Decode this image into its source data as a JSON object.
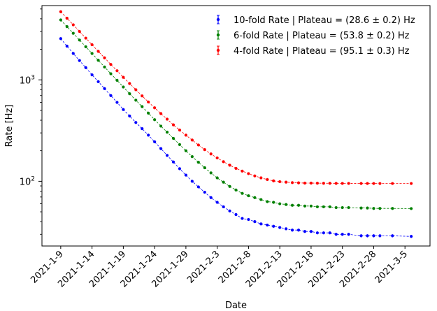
{
  "chart_data": {
    "type": "scatter",
    "title": "",
    "xlabel": "Date",
    "ylabel": "Rate [Hz]",
    "y_scale": "log",
    "ylim": [
      23,
      5400
    ],
    "xlim": [
      "2021-01-06",
      "2021-03-09"
    ],
    "grid": false,
    "legend_position": "top-right",
    "x_ticks": [
      "2021-1-9",
      "2021-1-14",
      "2021-1-19",
      "2021-1-24",
      "2021-1-29",
      "2021-2-3",
      "2021-2-8",
      "2021-2-13",
      "2021-2-18",
      "2021-2-23",
      "2021-2-28",
      "2021-3-5"
    ],
    "y_ticks": [
      {
        "value": 100,
        "label": "10",
        "exp": "2"
      },
      {
        "value": 1000,
        "label": "10",
        "exp": "3"
      }
    ],
    "series": [
      {
        "name": "10-fold Rate | Plateau = (28.6 ± 0.2) Hz",
        "color": "#0000ff",
        "x": [
          "2021-01-09",
          "2021-01-10",
          "2021-01-11",
          "2021-01-12",
          "2021-01-13",
          "2021-01-14",
          "2021-01-15",
          "2021-01-16",
          "2021-01-17",
          "2021-01-18",
          "2021-01-19",
          "2021-01-20",
          "2021-01-21",
          "2021-01-22",
          "2021-01-23",
          "2021-01-24",
          "2021-01-25",
          "2021-01-26",
          "2021-01-27",
          "2021-01-28",
          "2021-01-29",
          "2021-01-30",
          "2021-01-31",
          "2021-02-01",
          "2021-02-02",
          "2021-02-03",
          "2021-02-04",
          "2021-02-05",
          "2021-02-06",
          "2021-02-07",
          "2021-02-08",
          "2021-02-09",
          "2021-02-10",
          "2021-02-11",
          "2021-02-12",
          "2021-02-13",
          "2021-02-14",
          "2021-02-15",
          "2021-02-16",
          "2021-02-17",
          "2021-02-18",
          "2021-02-19",
          "2021-02-20",
          "2021-02-21",
          "2021-02-22",
          "2021-02-23",
          "2021-02-24",
          "2021-02-26",
          "2021-02-27",
          "2021-02-28",
          "2021-03-01",
          "2021-03-03",
          "2021-03-06"
        ],
        "values": [
          2550,
          2150,
          1820,
          1550,
          1320,
          1120,
          960,
          820,
          700,
          600,
          510,
          440,
          380,
          330,
          285,
          245,
          210,
          180,
          155,
          133,
          115,
          100,
          88,
          78,
          69,
          62,
          56,
          51,
          47,
          43,
          42,
          40,
          38,
          37,
          36,
          35,
          34,
          33,
          33,
          32,
          32,
          31,
          31,
          31,
          30,
          30,
          30,
          29,
          29,
          29,
          29,
          29,
          28.6
        ],
        "errors": [
          15,
          13,
          11,
          10,
          9,
          8,
          7,
          6,
          5,
          5,
          4,
          4,
          3,
          3,
          3,
          2,
          2,
          2,
          2,
          2,
          1.5,
          1.5,
          1.2,
          1,
          1,
          1,
          1,
          1,
          1,
          1,
          1,
          1,
          1,
          1,
          1,
          1,
          1,
          1,
          1,
          1,
          1,
          1,
          1,
          1,
          1,
          1,
          1,
          1,
          1,
          1,
          1,
          1,
          1
        ]
      },
      {
        "name": "6-fold Rate | Plateau = (53.8 ± 0.2) Hz",
        "color": "#008000",
        "x": [
          "2021-01-09",
          "2021-01-10",
          "2021-01-11",
          "2021-01-12",
          "2021-01-13",
          "2021-01-14",
          "2021-01-15",
          "2021-01-16",
          "2021-01-17",
          "2021-01-18",
          "2021-01-19",
          "2021-01-20",
          "2021-01-21",
          "2021-01-22",
          "2021-01-23",
          "2021-01-24",
          "2021-01-25",
          "2021-01-26",
          "2021-01-27",
          "2021-01-28",
          "2021-01-29",
          "2021-01-30",
          "2021-01-31",
          "2021-02-01",
          "2021-02-02",
          "2021-02-03",
          "2021-02-04",
          "2021-02-05",
          "2021-02-06",
          "2021-02-07",
          "2021-02-08",
          "2021-02-09",
          "2021-02-10",
          "2021-02-11",
          "2021-02-12",
          "2021-02-13",
          "2021-02-14",
          "2021-02-15",
          "2021-02-16",
          "2021-02-17",
          "2021-02-18",
          "2021-02-19",
          "2021-02-20",
          "2021-02-21",
          "2021-02-22",
          "2021-02-23",
          "2021-02-24",
          "2021-02-26",
          "2021-02-27",
          "2021-02-28",
          "2021-03-01",
          "2021-03-03",
          "2021-03-06"
        ],
        "values": [
          3900,
          3350,
          2880,
          2470,
          2120,
          1820,
          1560,
          1340,
          1150,
          990,
          850,
          730,
          630,
          545,
          470,
          405,
          350,
          305,
          265,
          230,
          200,
          175,
          154,
          136,
          121,
          108,
          98,
          89,
          82,
          76,
          72,
          69,
          66,
          63,
          62,
          60,
          59,
          58,
          58,
          57,
          57,
          56,
          56,
          56,
          55,
          55,
          55,
          54.5,
          54.5,
          54,
          54,
          54,
          53.8
        ],
        "errors": [
          20,
          18,
          16,
          14,
          12,
          10,
          9,
          8,
          7,
          6,
          5,
          5,
          4,
          4,
          3,
          3,
          3,
          2,
          2,
          2,
          2,
          2,
          1.5,
          1.5,
          1.2,
          1,
          1,
          1,
          1,
          1,
          1,
          1,
          1,
          1,
          1,
          1,
          1,
          1,
          1,
          1,
          1,
          1,
          1,
          1,
          1,
          1,
          1,
          1,
          1,
          1,
          1,
          1,
          1
        ]
      },
      {
        "name": "4-fold Rate | Plateau = (95.1 ± 0.3) Hz",
        "color": "#ff0000",
        "x": [
          "2021-01-09",
          "2021-01-10",
          "2021-01-11",
          "2021-01-12",
          "2021-01-13",
          "2021-01-14",
          "2021-01-15",
          "2021-01-16",
          "2021-01-17",
          "2021-01-18",
          "2021-01-19",
          "2021-01-20",
          "2021-01-21",
          "2021-01-22",
          "2021-01-23",
          "2021-01-24",
          "2021-01-25",
          "2021-01-26",
          "2021-01-27",
          "2021-01-28",
          "2021-01-29",
          "2021-01-30",
          "2021-01-31",
          "2021-02-01",
          "2021-02-02",
          "2021-02-03",
          "2021-02-04",
          "2021-02-05",
          "2021-02-06",
          "2021-02-07",
          "2021-02-08",
          "2021-02-09",
          "2021-02-10",
          "2021-02-11",
          "2021-02-12",
          "2021-02-13",
          "2021-02-14",
          "2021-02-15",
          "2021-02-16",
          "2021-02-17",
          "2021-02-18",
          "2021-02-19",
          "2021-02-20",
          "2021-02-21",
          "2021-02-22",
          "2021-02-23",
          "2021-02-24",
          "2021-02-26",
          "2021-02-27",
          "2021-02-28",
          "2021-03-01",
          "2021-03-03",
          "2021-03-06"
        ],
        "values": [
          4700,
          4050,
          3490,
          3000,
          2580,
          2220,
          1910,
          1650,
          1420,
          1230,
          1060,
          920,
          800,
          695,
          605,
          530,
          465,
          410,
          360,
          320,
          285,
          255,
          228,
          205,
          186,
          170,
          156,
          144,
          134,
          126,
          119,
          113,
          108,
          104,
          101,
          99,
          98,
          97,
          96.5,
          96,
          96,
          95.8,
          95.6,
          95.5,
          95.4,
          95.3,
          95.3,
          95.2,
          95.2,
          95.1,
          95.1,
          95.1,
          95.1
        ],
        "errors": [
          25,
          22,
          19,
          17,
          15,
          13,
          11,
          10,
          9,
          8,
          7,
          6,
          5,
          5,
          4,
          4,
          3,
          3,
          3,
          2,
          2,
          2,
          2,
          2,
          1.5,
          1.5,
          1.2,
          1.2,
          1,
          1,
          1,
          1,
          1,
          1,
          1,
          1,
          1,
          1,
          1,
          1,
          1,
          1,
          1,
          1,
          1,
          1,
          1,
          1,
          1,
          1,
          1,
          1,
          1
        ]
      }
    ]
  }
}
